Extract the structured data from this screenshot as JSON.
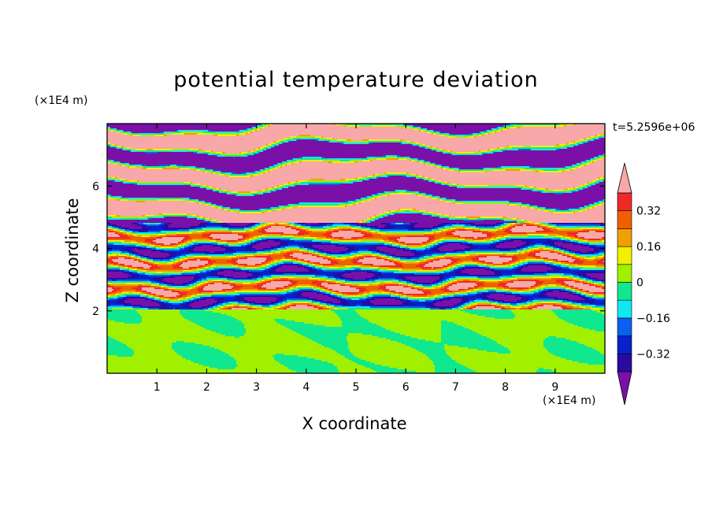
{
  "chart_data": {
    "type": "heatmap",
    "title": "potential temperature deviation",
    "xlabel": "X coordinate",
    "ylabel": "Z coordinate",
    "x_unit": "(×1E4 m)",
    "y_unit": "(×1E4 m)",
    "time_label": "t=5.2596e+06",
    "xlim": [
      0,
      10
    ],
    "ylim": [
      0,
      8
    ],
    "x_ticks": [
      "1",
      "2",
      "3",
      "4",
      "5",
      "6",
      "7",
      "8",
      "9"
    ],
    "y_ticks": [
      "2",
      "4",
      "6"
    ],
    "x_tick_values": [
      1,
      2,
      3,
      4,
      5,
      6,
      7,
      8,
      9
    ],
    "y_tick_values": [
      2,
      4,
      6
    ],
    "colorbar": {
      "levels": [
        -0.4,
        -0.32,
        -0.24,
        -0.16,
        -0.08,
        0,
        0.08,
        0.16,
        0.24,
        0.32,
        0.4
      ],
      "tick_labels": [
        "0.32",
        "0.16",
        "0",
        "−0.16",
        "−0.32"
      ],
      "tick_values": [
        0.32,
        0.16,
        0,
        -0.16,
        -0.32
      ],
      "colors": [
        "#7a10a8",
        "#2a0aa0",
        "#0a20c8",
        "#0a60f0",
        "#10e8f0",
        "#10e890",
        "#a0f000",
        "#f0f000",
        "#f0a000",
        "#f06000",
        "#f02828",
        "#f8a8a8"
      ],
      "extend": "both"
    },
    "bands": [
      {
        "z": [
          0.0,
          2.05
        ],
        "pattern": "lower"
      },
      {
        "z": [
          2.05,
          4.8
        ],
        "pattern": "mixed"
      },
      {
        "z": [
          4.8,
          8.0
        ],
        "pattern": "upper"
      }
    ]
  }
}
